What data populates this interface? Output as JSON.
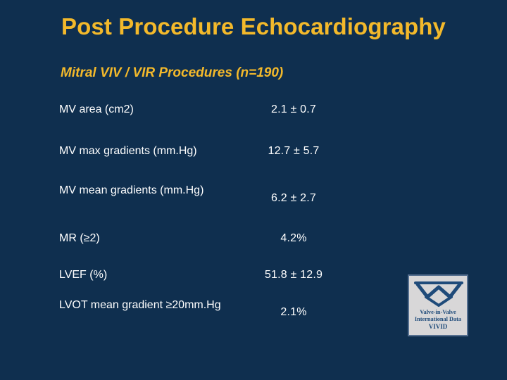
{
  "slide": {
    "title": "Post Procedure Echocardiography",
    "subtitle": "Mitral VIV / VIR Procedures (n=190)"
  },
  "metrics": [
    {
      "label": "MV area (cm2)",
      "value": "2.1 ± 0.7"
    },
    {
      "label": "MV max gradients (mm.Hg)",
      "value": "12.7 ± 5.7"
    },
    {
      "label": "MV mean gradients (mm.Hg)",
      "value": "6.2 ± 2.7"
    },
    {
      "label": "MR (≥2)",
      "value": "4.2%"
    },
    {
      "label": "LVEF (%)",
      "value": "51.8 ± 12.9"
    },
    {
      "label": "LVOT mean gradient ≥20mm.Hg",
      "value": "2.1%"
    }
  ],
  "logo": {
    "line1": "Valve-in-Valve",
    "line2": "International Data",
    "line3": "VIVID"
  },
  "colors": {
    "background": "#0f2f4f",
    "title": "#f3b92b",
    "text": "#ffffff",
    "logo_background": "#d8d7d8",
    "logo_mark": "#1f4b7a"
  }
}
